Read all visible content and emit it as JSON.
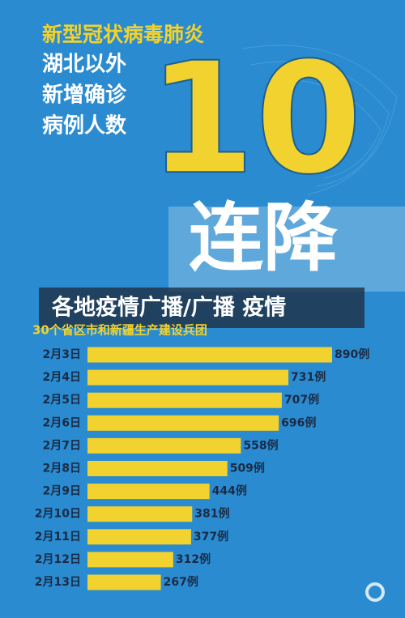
{
  "header": {
    "title": "新型冠状病毒肺炎",
    "lines": [
      "湖北以外",
      "新增确诊",
      "病例人数"
    ],
    "big_number": "10",
    "big_text": "连降"
  },
  "banner": "各地疫情广播/广播 疫情",
  "chart_data": {
    "type": "bar",
    "orientation": "horizontal",
    "subtitle": "30个省区市和新疆生产建设兵团",
    "categories": [
      "2月3日",
      "2月4日",
      "2月5日",
      "2月6日",
      "2月7日",
      "2月8日",
      "2月9日",
      "2月10日",
      "2月11日",
      "2月12日",
      "2月13日"
    ],
    "values": [
      890,
      731,
      707,
      696,
      558,
      509,
      444,
      381,
      377,
      312,
      267
    ],
    "value_labels": [
      "890例",
      "731例",
      "707例",
      "696例",
      "558例",
      "509例",
      "444例",
      "381例",
      "377例",
      "312例",
      "267例"
    ],
    "color": "#f2d22e"
  }
}
